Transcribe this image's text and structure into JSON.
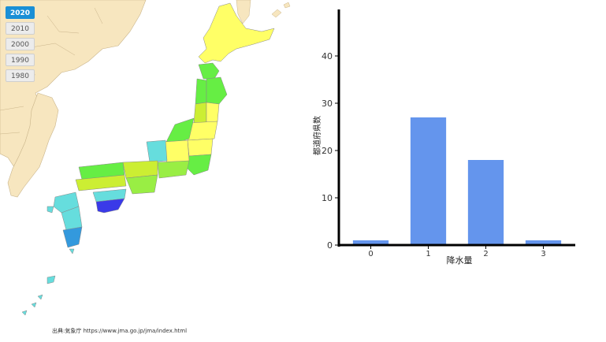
{
  "year_selector": {
    "buttons": [
      {
        "label": "2020",
        "active": true
      },
      {
        "label": "2010",
        "active": false
      },
      {
        "label": "2000",
        "active": false
      },
      {
        "label": "1990",
        "active": false
      },
      {
        "label": "1980",
        "active": false
      }
    ]
  },
  "map": {
    "source_credit": "出典:気象庁 https://www.jma.go.jp/jma/index.html",
    "colors": {
      "sea": "#ffffff",
      "land_neighbors": "#f7e6bf",
      "neighbor_border": "#c9b48a",
      "level_0": "#3a3ae8",
      "level_1": "#ffff66",
      "level_2": "#66ee44",
      "level_3": "#66dddd",
      "level_4": "#3399dd"
    }
  },
  "chart_data": {
    "type": "bar",
    "categories": [
      "0",
      "1",
      "2",
      "3"
    ],
    "values": [
      1,
      27,
      18,
      1
    ],
    "xlabel": "降水量",
    "ylabel": "都道府県数",
    "ylim": [
      0,
      47
    ],
    "yticks": [
      0,
      10,
      20,
      30,
      40
    ],
    "bar_color": "#6495ed",
    "grid": false
  }
}
